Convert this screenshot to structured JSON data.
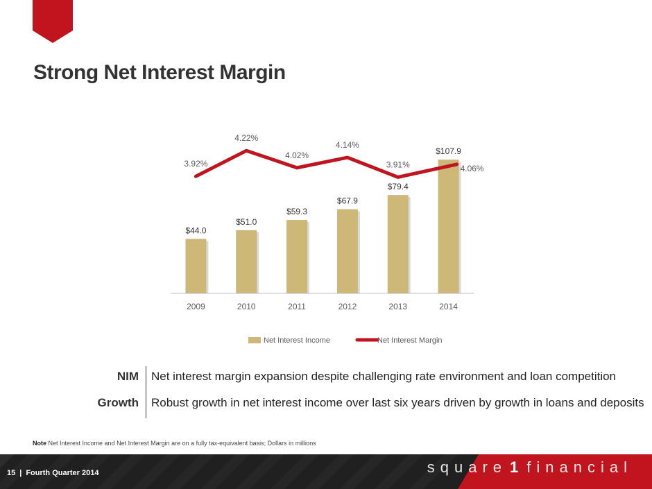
{
  "header": {
    "title": "Strong Net Interest Margin"
  },
  "chart_data": {
    "type": "bar",
    "categories": [
      "2009",
      "2010",
      "2011",
      "2012",
      "2013",
      "2014"
    ],
    "series": [
      {
        "name": "Net Interest Income",
        "type": "bar",
        "values": [
          44.0,
          51.0,
          59.3,
          67.9,
          79.4,
          107.9
        ],
        "labels": [
          "$44.0",
          "$51.0",
          "$59.3",
          "$67.9",
          "$79.4",
          "$107.9"
        ],
        "color": "#CDB878"
      },
      {
        "name": "Net Interest Margin",
        "type": "line",
        "values": [
          3.92,
          4.22,
          4.02,
          4.14,
          3.91,
          4.06
        ],
        "labels": [
          "3.92%",
          "4.22%",
          "4.02%",
          "4.14%",
          "3.91%",
          "4.06%"
        ],
        "color": "#C0141E"
      }
    ],
    "legend_position": "bottom",
    "grid": false,
    "y_axis_visible": false
  },
  "highlights": [
    {
      "key": "NIM",
      "text": "Net interest margin expansion despite challenging rate environment and loan competition"
    },
    {
      "key": "Growth",
      "text": "Robust growth in net interest income over last six years driven by growth in loans and deposits"
    }
  ],
  "note": {
    "label": "Note",
    "text": "Net Interest Income and Net Interest Margin are on a fully tax-equivalent basis; Dollars in millions"
  },
  "footer": {
    "page_number": "15",
    "separator": "|",
    "period": "Fourth Quarter 2014",
    "brand_left": "square",
    "brand_one": "1",
    "brand_right": "financial"
  }
}
